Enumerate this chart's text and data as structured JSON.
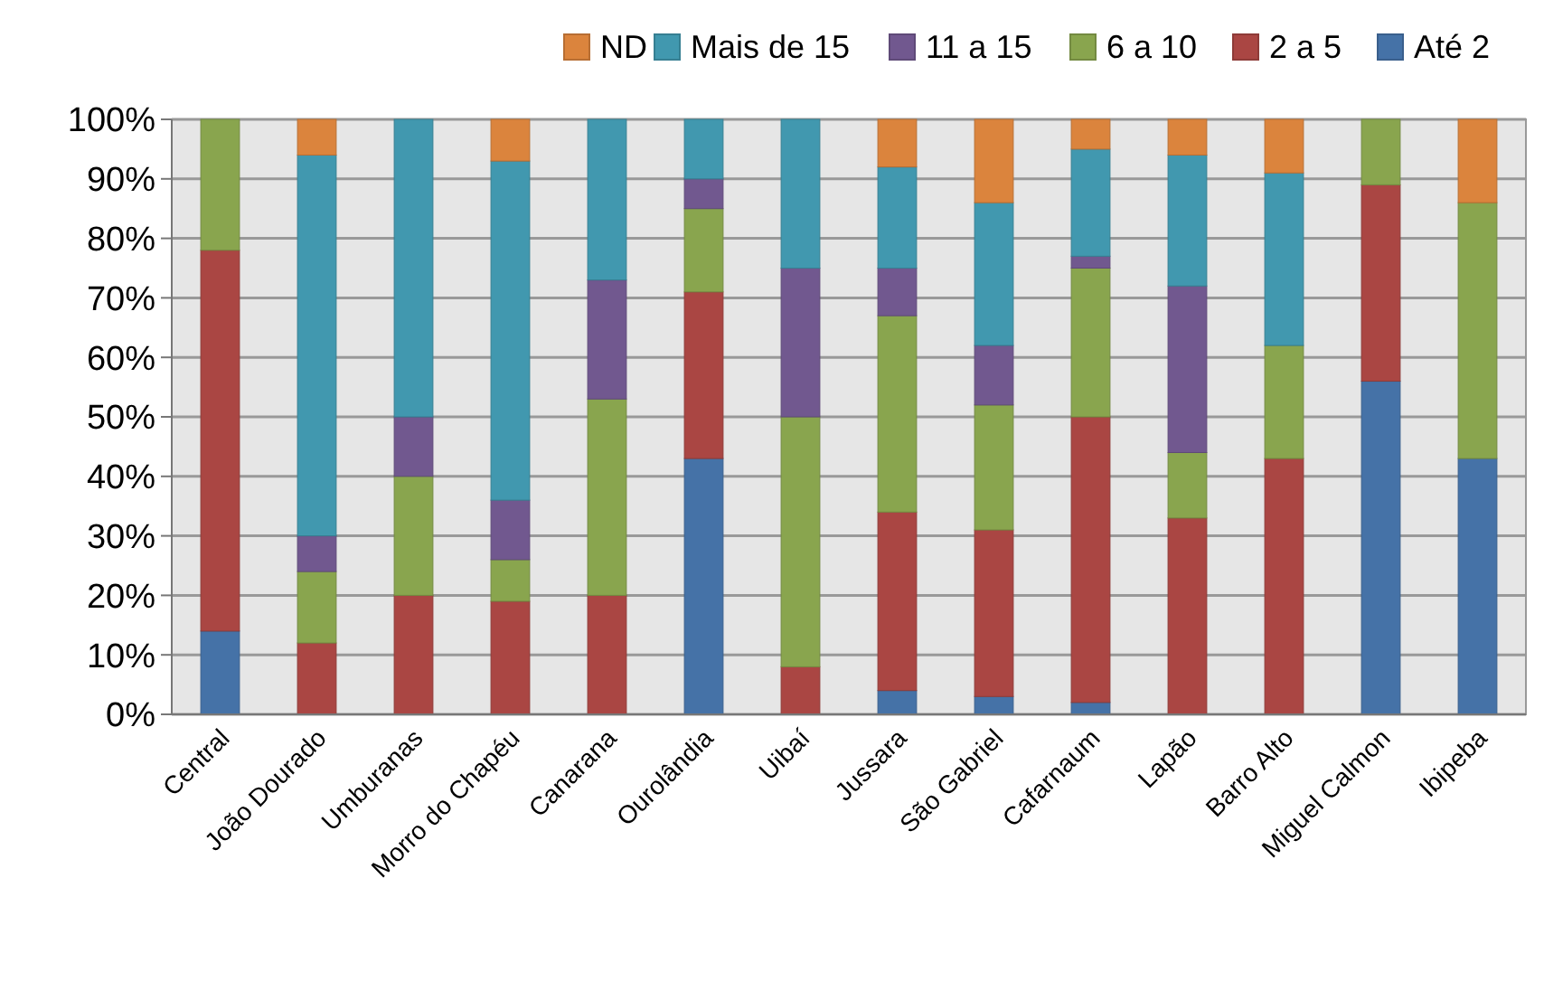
{
  "chart_data": {
    "type": "bar",
    "stacked": true,
    "categories": [
      "Central",
      "João Dourado",
      "Umburanas",
      "Morro do Chapéu",
      "Canarana",
      "Ourolândia",
      "Uibaí",
      "Jussara",
      "São Gabriel",
      "Cafarnaum",
      "Lapão",
      "Barro Alto",
      "Miguel Calmon",
      "Ibipeba"
    ],
    "series": [
      {
        "name": "Até 2",
        "color": "#4572a7",
        "values": [
          14,
          0,
          0,
          0,
          0,
          43,
          0,
          4,
          3,
          2,
          0,
          0,
          56,
          43
        ]
      },
      {
        "name": "2 a 5",
        "color": "#aa4643",
        "values": [
          64,
          12,
          20,
          19,
          20,
          28,
          8,
          30,
          28,
          48,
          33,
          43,
          33,
          0
        ]
      },
      {
        "name": "6 a 10",
        "color": "#89a54e",
        "values": [
          22,
          12,
          20,
          7,
          33,
          14,
          42,
          33,
          21,
          25,
          11,
          19,
          11,
          43
        ]
      },
      {
        "name": "11 a 15",
        "color": "#71588f",
        "values": [
          0,
          6,
          10,
          10,
          20,
          5,
          25,
          8,
          10,
          2,
          28,
          0,
          0,
          0
        ]
      },
      {
        "name": "Mais de 15",
        "color": "#4198af",
        "values": [
          0,
          64,
          50,
          57,
          27,
          10,
          25,
          17,
          24,
          18,
          22,
          29,
          0,
          0
        ]
      },
      {
        "name": "ND",
        "color": "#db843d",
        "values": [
          0,
          6,
          0,
          7,
          0,
          0,
          0,
          8,
          14,
          5,
          6,
          9,
          0,
          14
        ]
      }
    ],
    "ylim": [
      0,
      100
    ],
    "yticks": [
      {
        "value": 0,
        "label": "0%"
      },
      {
        "value": 10,
        "label": "10%"
      },
      {
        "value": 20,
        "label": "20%"
      },
      {
        "value": 30,
        "label": "30%"
      },
      {
        "value": 40,
        "label": "40%"
      },
      {
        "value": 50,
        "label": "50%"
      },
      {
        "value": 60,
        "label": "60%"
      },
      {
        "value": 70,
        "label": "70%"
      },
      {
        "value": 80,
        "label": "80%"
      },
      {
        "value": 90,
        "label": "90%"
      },
      {
        "value": 100,
        "label": "100%"
      }
    ],
    "grid": "y",
    "legend": "top right"
  }
}
